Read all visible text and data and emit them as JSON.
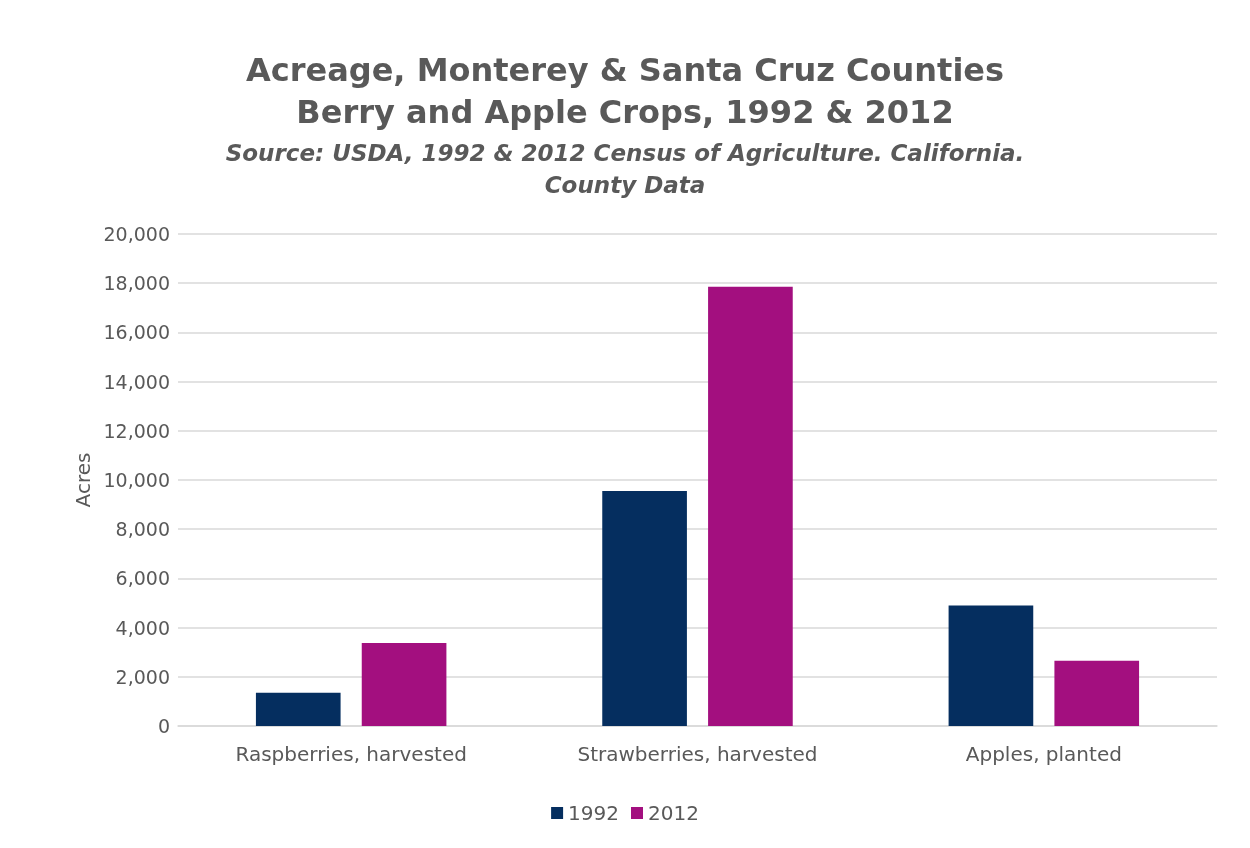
{
  "chart_data": {
    "type": "bar",
    "title": "Acreage, Monterey & Santa Cruz Counties\nBerry and Apple Crops, 1992 & 2012",
    "subtitle": "Source: USDA, 1992 & 2012 Census of Agriculture. California.\nCounty Data",
    "ylabel": "Acres",
    "categories": [
      "Raspberries, harvested",
      "Strawberries, harvested",
      "Apples, planted"
    ],
    "series": [
      {
        "name": "1992",
        "color": "#052e5f",
        "values": [
          1350,
          9550,
          4900
        ]
      },
      {
        "name": "2012",
        "color": "#a30f7f",
        "values": [
          3370,
          17860,
          2650
        ]
      }
    ],
    "ylim": [
      0,
      20000
    ],
    "yticks": [
      0,
      {
        "value": 2000,
        "label": "2,000"
      },
      {
        "value": 4000,
        "label": "4,000"
      },
      {
        "value": 6000,
        "label": "6,000"
      },
      {
        "value": 8000,
        "label": "8,000"
      },
      {
        "value": 10000,
        "label": "10,000"
      },
      {
        "value": 12000,
        "label": "12,000"
      },
      {
        "value": 14000,
        "label": "14,000"
      },
      {
        "value": 16000,
        "label": "16,000"
      },
      {
        "value": 18000,
        "label": "18,000"
      },
      {
        "value": 20000,
        "label": "20,000"
      }
    ],
    "grid": "y",
    "legend": "bottom"
  }
}
